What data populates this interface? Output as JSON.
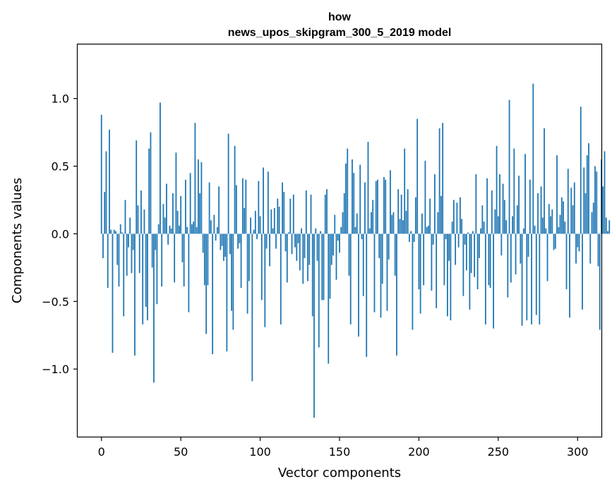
{
  "chart_data": {
    "type": "bar",
    "title": [
      "how",
      "news_upos_skipgram_300_5_2019 model"
    ],
    "xlabel": "Vector components",
    "ylabel": "Components values",
    "xlim": [
      -15,
      315
    ],
    "ylim": [
      -1.5,
      1.4
    ],
    "xticks": [
      0,
      50,
      100,
      150,
      200,
      250,
      300
    ],
    "yticks": [
      -1.0,
      -0.5,
      0.0,
      0.5,
      1.0
    ],
    "ytick_labels": [
      "−1.0",
      "−0.5",
      "0.0",
      "0.5",
      "1.0"
    ],
    "bar_color": "#1f77b4",
    "values": [
      0.88,
      -0.18,
      0.31,
      0.61,
      -0.4,
      0.77,
      0.03,
      -0.88,
      0.03,
      0.02,
      -0.23,
      -0.39,
      0.07,
      0.01,
      -0.61,
      0.25,
      -0.31,
      -0.1,
      0.12,
      -0.29,
      -0.12,
      -0.9,
      0.69,
      0.21,
      -0.29,
      0.32,
      -0.67,
      0.18,
      -0.54,
      -0.64,
      0.63,
      0.75,
      -0.25,
      -1.1,
      -0.12,
      -0.52,
      0.07,
      0.97,
      -0.39,
      0.22,
      0.12,
      0.37,
      -0.08,
      0.06,
      0.04,
      0.3,
      -0.36,
      0.6,
      0.17,
      0.06,
      0.28,
      -0.21,
      -0.39,
      0.4,
      0.05,
      -0.58,
      0.45,
      0.07,
      0.09,
      0.82,
      0.05,
      0.55,
      0.3,
      0.53,
      -0.14,
      -0.38,
      -0.74,
      -0.38,
      0.38,
      0.1,
      -0.89,
      0.14,
      -0.05,
      0.05,
      0.35,
      -0.12,
      -0.09,
      -0.2,
      -0.17,
      -0.87,
      0.74,
      -0.15,
      -0.57,
      -0.71,
      0.65,
      0.36,
      -0.11,
      -0.07,
      -0.4,
      0.41,
      0.19,
      0.4,
      -0.59,
      -0.35,
      0.12,
      -1.09,
      0.03,
      0.17,
      -0.04,
      0.39,
      0.13,
      -0.49,
      0.49,
      -0.69,
      -0.11,
      0.46,
      -0.24,
      0.18,
      0.04,
      0.19,
      -0.11,
      0.26,
      0.2,
      -0.67,
      0.38,
      0.31,
      -0.13,
      -0.36,
      0.01,
      0.26,
      -0.15,
      0.29,
      -0.1,
      -0.2,
      -0.07,
      -0.27,
      0.04,
      -0.37,
      -0.18,
      0.32,
      -0.35,
      -0.23,
      0.29,
      -0.61,
      -1.36,
      0.04,
      -0.2,
      -0.84,
      0.02,
      -0.49,
      -0.49,
      0.29,
      0.33,
      -0.96,
      -0.48,
      -0.23,
      -0.16,
      0.14,
      -0.34,
      -0.05,
      -0.14,
      0.05,
      0.16,
      0.3,
      0.52,
      0.63,
      -0.31,
      -0.67,
      0.55,
      0.45,
      0.05,
      0.15,
      -0.76,
      0.51,
      -0.04,
      -0.46,
      0.38,
      -0.91,
      0.68,
      0.04,
      0.16,
      0.25,
      -0.58,
      0.39,
      0.4,
      -0.18,
      -0.62,
      -0.37,
      0.42,
      0.4,
      -0.57,
      -0.19,
      0.47,
      0.14,
      0.16,
      -0.31,
      -0.9,
      0.33,
      0.11,
      0.29,
      0.1,
      0.63,
      0.17,
      0.33,
      -0.06,
      0.02,
      -0.71,
      -0.06,
      0.27,
      0.85,
      -0.41,
      -0.59,
      0.15,
      -0.38,
      0.54,
      0.05,
      0.06,
      0.26,
      -0.42,
      -0.08,
      0.44,
      -0.55,
      0.16,
      0.78,
      0.28,
      0.82,
      -0.38,
      -0.04,
      -0.61,
      -0.2,
      -0.64,
      0.09,
      0.25,
      -0.23,
      0.23,
      -0.1,
      0.27,
      0.11,
      -0.46,
      -0.08,
      -0.27,
      0.01,
      -0.56,
      -0.29,
      0.02,
      -0.32,
      0.44,
      -0.41,
      -0.18,
      0.04,
      0.21,
      0.09,
      -0.67,
      0.41,
      -0.38,
      -0.4,
      0.32,
      -0.7,
      0.18,
      0.65,
      0.13,
      0.44,
      -0.16,
      0.37,
      0.25,
      0.1,
      -0.47,
      0.99,
      -0.36,
      0.13,
      0.63,
      -0.3,
      0.21,
      0.43,
      -0.22,
      -0.68,
      0.04,
      0.59,
      -0.64,
      -0.17,
      0.4,
      -0.67,
      1.11,
      0.06,
      -0.6,
      0.3,
      -0.67,
      0.35,
      0.12,
      0.78,
      0.04,
      -0.35,
      0.22,
      0.13,
      0.18,
      -0.12,
      -0.11,
      0.58,
      0.05,
      0.14,
      0.27,
      0.24,
      0.09,
      -0.41,
      0.48,
      -0.62,
      0.34,
      0.21,
      0.38,
      -0.22,
      -0.1,
      -0.13,
      0.94,
      -0.56,
      0.49,
      0.3,
      0.58,
      0.67,
      -0.22,
      0.16,
      0.23,
      0.5,
      0.46,
      -0.24,
      -0.71,
      0.55,
      0.35,
      0.61,
      0.12,
      0.02,
      0.1
    ]
  }
}
